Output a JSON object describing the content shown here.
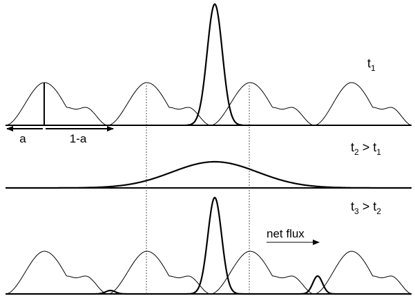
{
  "labels": {
    "t1": {
      "base": "t",
      "sub": "1",
      "rest": ""
    },
    "t2": {
      "base": "t",
      "sub": "2",
      "mid": " > t",
      "sub2": "1"
    },
    "t3": {
      "base": "t",
      "sub": "3",
      "mid": " > t",
      "sub2": "2"
    },
    "a": "a",
    "one_minus_a": "1-a",
    "net_flux": "net flux"
  },
  "colors": {
    "stroke": "#000000",
    "guide": "#555555"
  }
}
